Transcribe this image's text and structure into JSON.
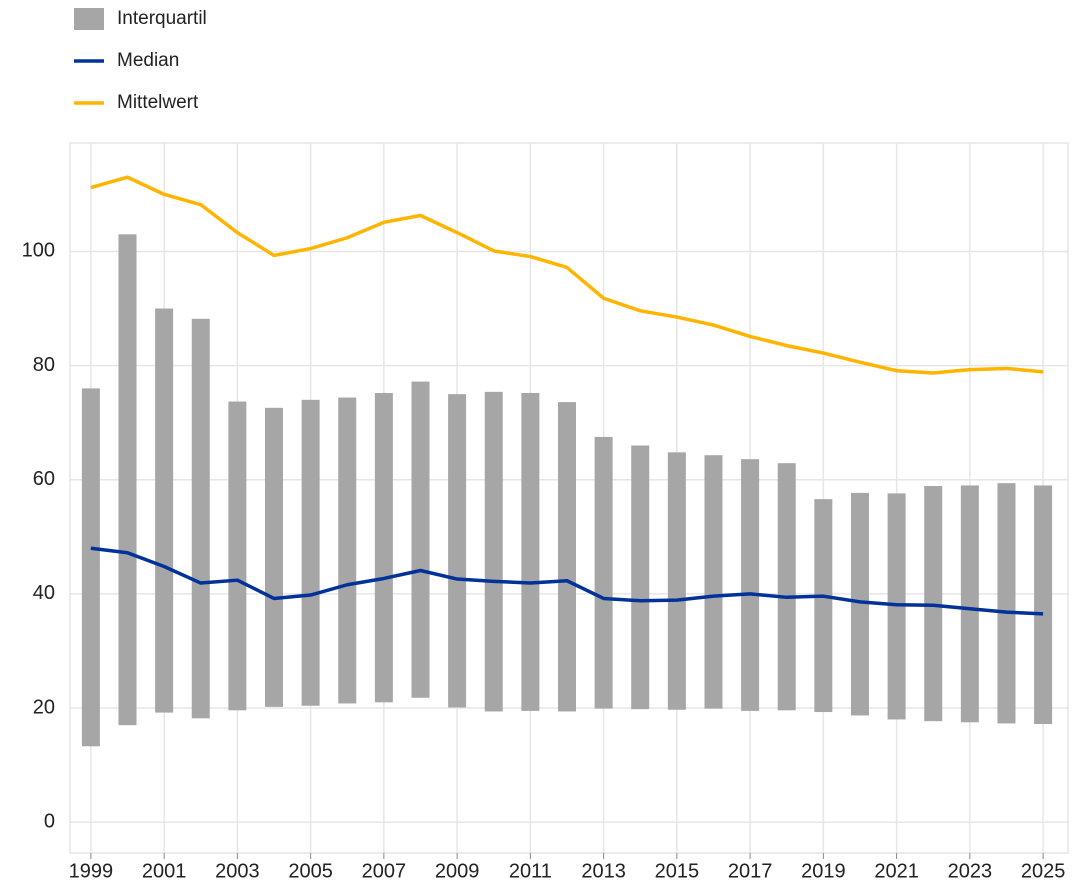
{
  "chart_data": {
    "type": "combo",
    "x": [
      1999,
      2000,
      2001,
      2002,
      2003,
      2004,
      2005,
      2006,
      2007,
      2008,
      2009,
      2010,
      2011,
      2012,
      2013,
      2014,
      2015,
      2016,
      2017,
      2018,
      2019,
      2020,
      2021,
      2022,
      2023,
      2024,
      2025
    ],
    "xlim": [
      1998.43,
      2025.68
    ],
    "xticks": [
      1999,
      2001,
      2003,
      2005,
      2007,
      2009,
      2011,
      2013,
      2015,
      2017,
      2019,
      2021,
      2023,
      2025
    ],
    "ylim": [
      -5.4,
      119
    ],
    "yticks": [
      0,
      20,
      40,
      60,
      80,
      100
    ],
    "grid": true,
    "series": [
      {
        "name": "Interquartil",
        "type": "range",
        "color": "#a6a6a6",
        "low": [
          13.3,
          17,
          19.2,
          18.2,
          19.6,
          20.2,
          20.4,
          20.8,
          21,
          21.8,
          20.1,
          19.4,
          19.5,
          19.4,
          19.9,
          19.8,
          19.7,
          19.9,
          19.5,
          19.6,
          19.3,
          18.7,
          18,
          17.7,
          17.5,
          17.3,
          17.2
        ],
        "high": [
          76,
          103,
          90,
          88.2,
          73.7,
          72.6,
          74,
          74.4,
          75.2,
          77.2,
          75,
          75.4,
          75.2,
          73.6,
          67.5,
          66,
          64.8,
          64.3,
          63.6,
          62.9,
          56.6,
          57.7,
          57.6,
          58.9,
          59,
          59.4,
          59
        ]
      },
      {
        "name": "Median",
        "type": "line",
        "color": "#003299",
        "values": [
          48,
          47.2,
          44.8,
          41.9,
          42.4,
          39.2,
          39.8,
          41.6,
          42.7,
          44.1,
          42.6,
          42.2,
          41.9,
          42.3,
          39.2,
          38.8,
          38.9,
          39.6,
          40,
          39.4,
          39.6,
          38.6,
          38.1,
          38,
          37.4,
          36.8,
          36.5
        ]
      },
      {
        "name": "Mittelwert",
        "type": "line",
        "color": "#ffb400",
        "values": [
          111.2,
          113,
          110,
          108.2,
          103.3,
          99.3,
          100.5,
          102.4,
          105.1,
          106.3,
          103.3,
          100.1,
          99.1,
          97.2,
          91.8,
          89.6,
          88.5,
          87.1,
          85.1,
          83.5,
          82.2,
          80.6,
          79.1,
          78.7,
          79.3,
          79.5,
          78.9
        ]
      }
    ]
  }
}
